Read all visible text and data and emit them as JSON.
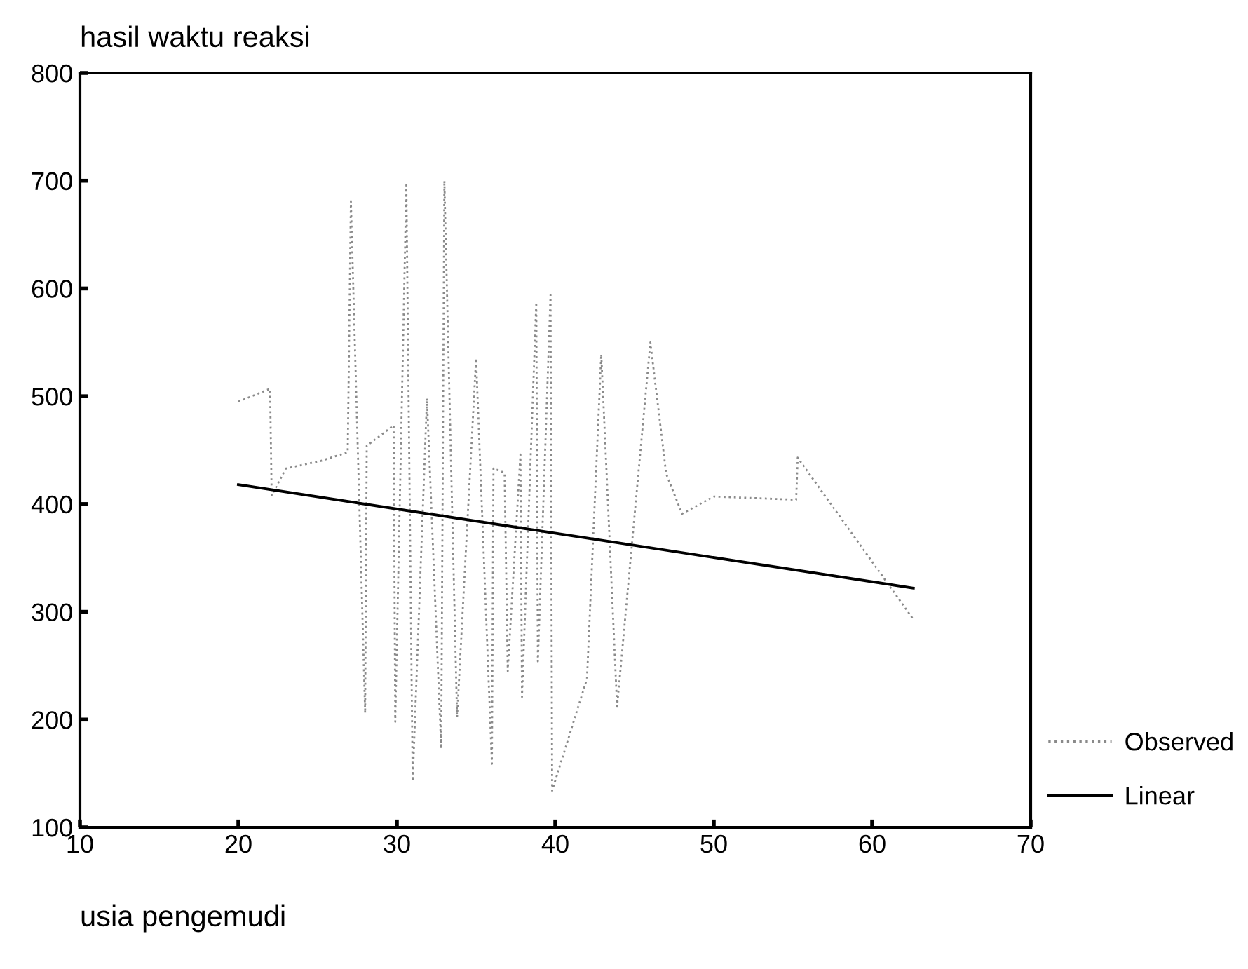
{
  "chart_data": {
    "type": "line",
    "ylabel": "hasil waktu reaksi",
    "xlabel": "usia pengemudi",
    "xlim": [
      10,
      70
    ],
    "ylim": [
      100,
      800
    ],
    "xticks": [
      10,
      20,
      30,
      40,
      50,
      60,
      70
    ],
    "yticks": [
      100,
      200,
      300,
      400,
      500,
      600,
      700,
      800
    ],
    "grid": false,
    "legend": "right",
    "marker": "none",
    "series": [
      {
        "name": "Observed",
        "color": "#8a8a8a",
        "line_style": "dotted",
        "x": [
          20,
          22,
          22.1,
          23,
          25.2,
          26.9,
          27.1,
          28,
          28.1,
          29.8,
          29.9,
          30.6,
          31,
          31.9,
          32.8,
          33,
          33.8,
          35,
          36,
          36.1,
          36.8,
          37,
          37.8,
          37.9,
          38.8,
          38.9,
          39.7,
          39.8,
          42,
          42.9,
          43.9,
          46,
          47,
          48,
          50,
          55.2,
          55.3,
          62.6
        ],
        "values": [
          495,
          507,
          408,
          433,
          440,
          448,
          681,
          206,
          454,
          473,
          198,
          696,
          143,
          498,
          173,
          700,
          202,
          535,
          159,
          433,
          429,
          245,
          446,
          221,
          587,
          254,
          594,
          134,
          238,
          539,
          212,
          550,
          428,
          391,
          407,
          404,
          443,
          293
        ]
      },
      {
        "name": "Linear",
        "color": "#000000",
        "line_style": "solid",
        "x": [
          20,
          62.6
        ],
        "values": [
          418,
          322
        ]
      }
    ]
  }
}
